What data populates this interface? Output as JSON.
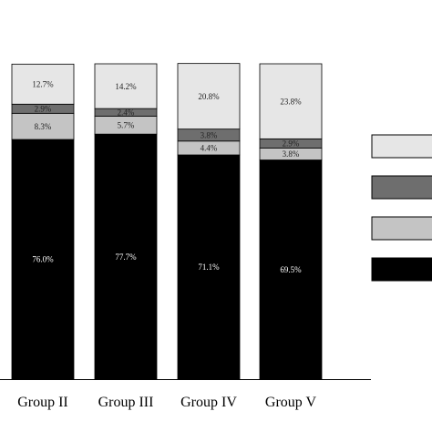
{
  "colors": {
    "seg_light": "#e6e6e6",
    "seg_dark_gray": "#6e6e6e",
    "seg_mid_gray": "#c4c4c4",
    "seg_black": "#000000",
    "axis": "#000000",
    "text_on_light": "#222222",
    "text_on_dark": "#ffffff"
  },
  "chart_data": {
    "type": "bar",
    "stacked": true,
    "orientation": "vertical",
    "categories": [
      "Group II",
      "Group III",
      "Group IV",
      "Group V"
    ],
    "series": [
      {
        "values": [
          76.0,
          77.7,
          71.1,
          69.5
        ],
        "labels": [
          "76.0%",
          "77.7%",
          "71.1%",
          "69.5%"
        ],
        "color_key": "seg_black"
      },
      {
        "values": [
          8.3,
          5.7,
          4.4,
          3.8
        ],
        "labels": [
          "8.3%",
          "5.7%",
          "4.4%",
          "3.8%"
        ],
        "color_key": "seg_mid_gray"
      },
      {
        "values": [
          2.9,
          2.4,
          3.8,
          2.9
        ],
        "labels": [
          "2.9%",
          "2.4%",
          "3.8%",
          "2.9%"
        ],
        "color_key": "seg_dark_gray"
      },
      {
        "values": [
          12.7,
          14.2,
          20.8,
          23.8
        ],
        "labels": [
          "12.7%",
          "14.2%",
          "20.8%",
          "23.8%"
        ],
        "color_key": "seg_light"
      }
    ],
    "ylim": [
      0,
      100
    ],
    "grid": false,
    "legend_placement": "right",
    "legend_order": [
      "seg_light",
      "seg_dark_gray",
      "seg_mid_gray",
      "seg_black"
    ],
    "title": "",
    "xlabel": "",
    "ylabel": ""
  }
}
